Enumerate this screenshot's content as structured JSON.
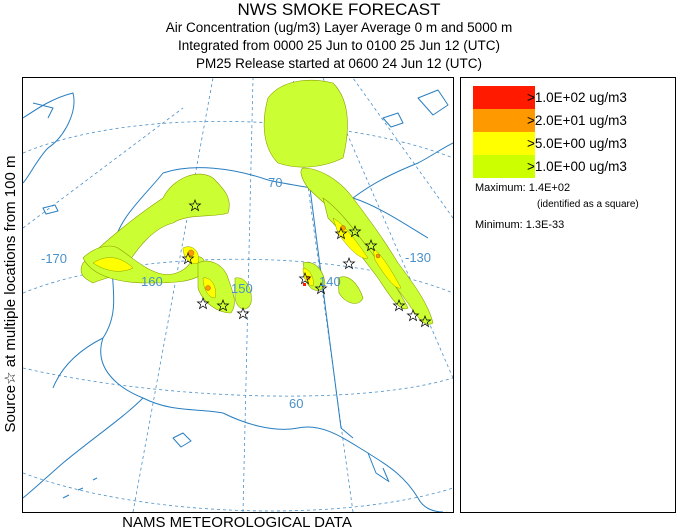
{
  "header": {
    "title": "NWS SMOKE FORECAST",
    "line2": "Air Concentration (ug/m3) Layer Average    0 m and  5000 m",
    "line3": "Integrated from 0000 25 Jun to 0100 25 Jun 12 (UTC)",
    "line4": "PM25 Release started at 0600 24 Jun 12 (UTC)"
  },
  "side_label": "Source☆ at multiple locations  from   100 m",
  "footer": "NAMS METEOROLOGICAL DATA",
  "map": {
    "lon_labels": [
      "-170",
      "160",
      "150",
      "140",
      "-130"
    ],
    "lat_labels": [
      "70",
      "60"
    ]
  },
  "legend": {
    "items": [
      {
        "label": ">1.0E+02 ug/m3",
        "color": "#ff1a00"
      },
      {
        "label": ">2.0E+01 ug/m3",
        "color": "#ff9900"
      },
      {
        "label": ">5.0E+00 ug/m3",
        "color": "#ffff00"
      },
      {
        "label": ">1.0E+00 ug/m3",
        "color": "#ccff00"
      }
    ],
    "maximum_label": "Maximum: 1.4E+02",
    "maximum_note": "(identified as a square)",
    "minimum_label": "Minimum: 1.3E-33"
  },
  "colors": {
    "coast": "#2a7fc0",
    "grid": "#4a90c8",
    "plume_outer": "#ccff33",
    "plume_mid": "#ffff00",
    "plume_high": "#ff9900",
    "plume_max": "#ff1a00"
  }
}
